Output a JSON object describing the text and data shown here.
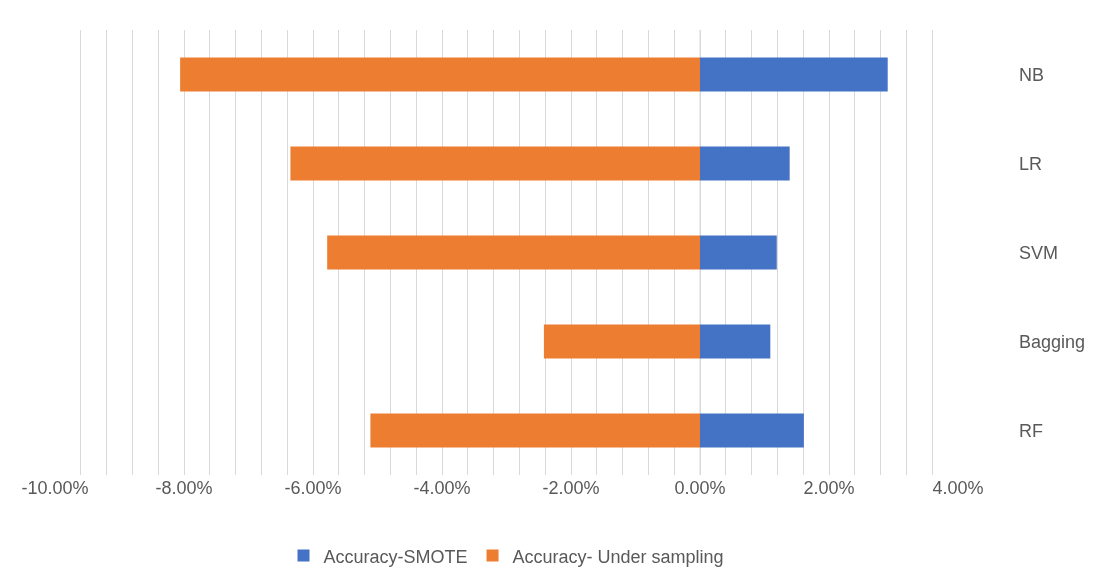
{
  "chart_data": {
    "type": "bar",
    "orientation": "horizontal",
    "stacked": true,
    "categories": [
      "NB",
      "LR",
      "SVM",
      "Bagging",
      "RF"
    ],
    "series": [
      {
        "name": "Accuracy-SMOTE",
        "color": "#4472c4",
        "values": [
          2.91,
          1.39,
          1.19,
          1.09,
          1.61
        ]
      },
      {
        "name": "Accuracy- Under sampling",
        "color": "#ed7d31",
        "values": [
          -8.06,
          -6.35,
          -5.78,
          -2.42,
          -5.11
        ]
      }
    ],
    "xlim": [
      -10,
      4
    ],
    "xticks": [
      {
        "value": -10,
        "label": "-10.00%"
      },
      {
        "value": -9.6,
        "label": null
      },
      {
        "value": -9.2,
        "label": null
      },
      {
        "value": -8.8,
        "label": null
      },
      {
        "value": -8.4,
        "label": null
      },
      {
        "value": -8,
        "label": "-8.00%"
      },
      {
        "value": -7.6,
        "label": null
      },
      {
        "value": -7.2,
        "label": null
      },
      {
        "value": -6.8,
        "label": null
      },
      {
        "value": -6.4,
        "label": null
      },
      {
        "value": -6,
        "label": "-6.00%"
      },
      {
        "value": -5.6,
        "label": null
      },
      {
        "value": -5.2,
        "label": null
      },
      {
        "value": -4.8,
        "label": null
      },
      {
        "value": -4.4,
        "label": null
      },
      {
        "value": -4,
        "label": "-4.00%"
      },
      {
        "value": -3.6,
        "label": null
      },
      {
        "value": -3.2,
        "label": null
      },
      {
        "value": -2.8,
        "label": null
      },
      {
        "value": -2.4,
        "label": null
      },
      {
        "value": -2,
        "label": "-2.00%"
      },
      {
        "value": -1.6,
        "label": null
      },
      {
        "value": -1.2,
        "label": null
      },
      {
        "value": -0.8,
        "label": null
      },
      {
        "value": -0.4,
        "label": null
      },
      {
        "value": 0,
        "label": "0.00%"
      },
      {
        "value": 0.4,
        "label": null
      },
      {
        "value": 0.8,
        "label": null
      },
      {
        "value": 1.2,
        "label": null
      },
      {
        "value": 1.6,
        "label": null
      },
      {
        "value": 2,
        "label": "2.00%"
      },
      {
        "value": 2.4,
        "label": null
      },
      {
        "value": 2.8,
        "label": null
      },
      {
        "value": 3.2,
        "label": null
      },
      {
        "value": 3.6,
        "label": null
      },
      {
        "value": 4,
        "label": "4.00%"
      }
    ],
    "grid": "x",
    "legend": "bottom"
  }
}
